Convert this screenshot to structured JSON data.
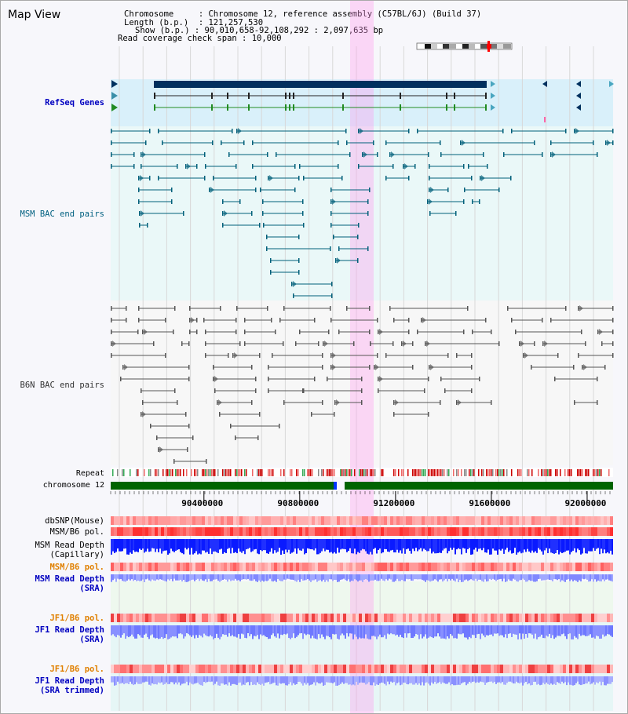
{
  "view": {
    "title": "Map View"
  },
  "info": {
    "chromosome_key": "Chromosome",
    "chromosome_val": "Chromosome 12, reference assembly (C57BL/6J) (Build 37)",
    "length_key": "Length (b.p.)",
    "length_val": "121,257,530",
    "show_key": "Show (b.p.)",
    "show_val": "90,010,658-92,108,292 : 2,097,635 bp",
    "span_key": "Read coverage check span",
    "span_val": "10,000"
  },
  "tracks": {
    "refseq": "RefSeq Genes",
    "msm_bac": "MSM BAC end pairs",
    "b6n_bac": "B6N BAC end pairs",
    "repeat": "Repeat",
    "chrom": "chromosome 12",
    "dbsnp": "dbSNP(Mouse)",
    "msm_pol_1": "MSM/B6 pol.",
    "msm_depth_cap_1": "MSM Read Depth",
    "msm_depth_cap_2": "(Capillary)",
    "msm_pol_2": "MSM/B6 pol.",
    "msm_depth_sra_1": "MSM Read Depth",
    "msm_depth_sra_2": "(SRA)",
    "jf1_pol_1": "JF1/B6 pol.",
    "jf1_depth_sra_1": "JF1 Read Depth",
    "jf1_depth_sra_2": "(SRA)",
    "jf1_pol_2": "JF1/B6 pol.",
    "jf1_depth_trim_1": "JF1 Read Depth",
    "jf1_depth_trim_2": "(SRA trimmed)"
  },
  "axis": {
    "ticks": [
      {
        "value": 90400000,
        "label": "90400000"
      },
      {
        "value": 90800000,
        "label": "90800000"
      },
      {
        "value": 91200000,
        "label": "91200000"
      },
      {
        "value": 91600000,
        "label": "91600000"
      },
      {
        "value": 92000000,
        "label": "92000000"
      }
    ],
    "start": 90010658,
    "end": 92108292
  },
  "colors": {
    "refseq_dark": "#00305e",
    "refseq_line": "#333333",
    "msm_bac": "#00607a",
    "b6n_bac": "#555555",
    "chrom_bar": "#006400",
    "highlight": "#ff99ee",
    "label_blue": "#0000c0",
    "label_teal": "#006080",
    "label_orange": "#e08000",
    "depth_dark": "#0a1aff",
    "depth_light": "#6e78ff"
  }
}
